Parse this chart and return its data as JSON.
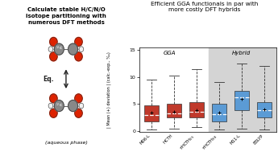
{
  "title": "Efficient GGA functionals in par with\nmore costly DFT hybrids",
  "ylabel": "| Mean (+) deviation | (calc.-exp., ‰)",
  "gga_color": "#c0392b",
  "hybrid_color": "#5b9bd5",
  "hybrid_bg": "#d4d4d4",
  "left_panel_bg": "#7ecfc0",
  "left_border_color": "#5ab8aa",
  "boxes": [
    {
      "whislo": 0.3,
      "q1": 1.8,
      "med": 3.0,
      "q3": 4.7,
      "whishi": 9.5,
      "mean": 3.4
    },
    {
      "whislo": 0.5,
      "q1": 2.5,
      "med": 3.3,
      "q3": 5.0,
      "whishi": 10.2,
      "mean": 3.6
    },
    {
      "whislo": 0.8,
      "q1": 2.6,
      "med": 3.6,
      "q3": 5.3,
      "whishi": 11.5,
      "mean": 3.8
    },
    {
      "whislo": 0.3,
      "q1": 1.8,
      "med": 3.2,
      "q3": 5.0,
      "whishi": 9.0,
      "mean": 3.4
    },
    {
      "whislo": 0.5,
      "q1": 3.8,
      "med": 6.2,
      "q3": 7.5,
      "whishi": 12.5,
      "mean": 6.0
    },
    {
      "whislo": 0.3,
      "q1": 2.5,
      "med": 3.8,
      "q3": 5.3,
      "whishi": 12.0,
      "mean": 4.0
    }
  ],
  "ylim": [
    -0.2,
    15.5
  ],
  "yticks": [
    0,
    5,
    10,
    15
  ]
}
